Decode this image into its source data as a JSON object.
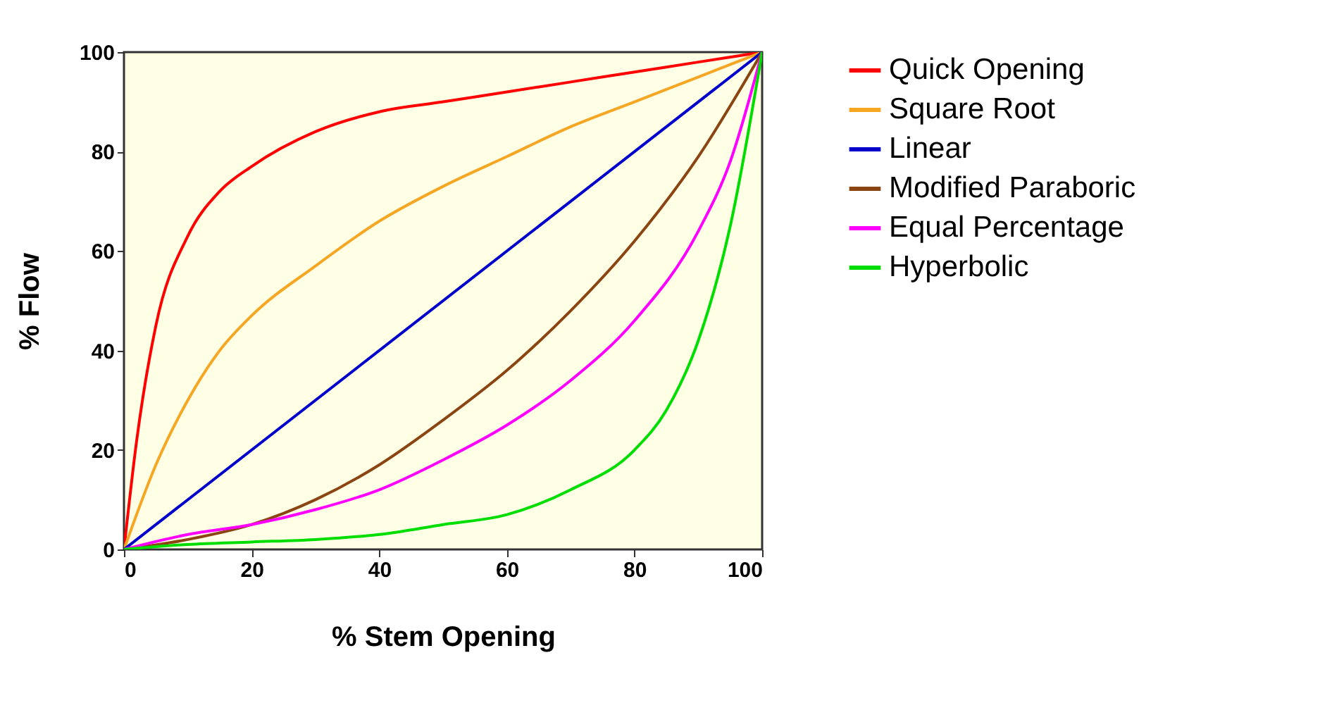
{
  "chart_data": {
    "type": "line",
    "xlabel": "% Stem Opening",
    "ylabel": "% Flow",
    "xlim": [
      0,
      100
    ],
    "ylim": [
      0,
      100
    ],
    "xticks": [
      0,
      20,
      40,
      60,
      80,
      100
    ],
    "yticks": [
      0,
      20,
      40,
      60,
      80,
      100
    ],
    "grid": false,
    "legend": "right",
    "series": [
      {
        "name": "Quick Opening",
        "color": "#ff0000",
        "x": [
          0,
          2,
          5,
          10,
          15,
          20,
          30,
          40,
          50,
          60,
          70,
          80,
          90,
          100
        ],
        "values": [
          0,
          22,
          45,
          63,
          72,
          77,
          84,
          88,
          90,
          92,
          94,
          96,
          98,
          100
        ]
      },
      {
        "name": "Square Root",
        "color": "#f5a623",
        "x": [
          0,
          5,
          10,
          15,
          20,
          30,
          40,
          50,
          60,
          70,
          80,
          90,
          100
        ],
        "values": [
          0,
          17,
          30,
          40,
          47,
          57,
          66,
          73,
          79,
          85,
          90,
          95,
          100
        ]
      },
      {
        "name": "Linear",
        "color": "#0000cc",
        "x": [
          0,
          100
        ],
        "values": [
          0,
          100
        ]
      },
      {
        "name": "Modified Paraboric",
        "color": "#8b4513",
        "x": [
          0,
          10,
          20,
          30,
          40,
          50,
          60,
          70,
          80,
          90,
          100
        ],
        "values": [
          0,
          2,
          5,
          10,
          17,
          26,
          36,
          48,
          62,
          79,
          100
        ]
      },
      {
        "name": "Equal Percentage",
        "color": "#ff00ff",
        "x": [
          0,
          10,
          20,
          30,
          40,
          50,
          60,
          70,
          80,
          90,
          95,
          100
        ],
        "values": [
          0,
          3,
          5,
          8,
          12,
          18,
          25,
          34,
          46,
          64,
          78,
          100
        ]
      },
      {
        "name": "Hyperbolic",
        "color": "#00dd00",
        "x": [
          0,
          10,
          20,
          30,
          40,
          50,
          60,
          70,
          80,
          85,
          90,
          95,
          100
        ],
        "values": [
          0,
          1,
          1.5,
          2,
          3,
          5,
          7,
          12,
          20,
          28,
          42,
          65,
          100
        ]
      }
    ]
  }
}
